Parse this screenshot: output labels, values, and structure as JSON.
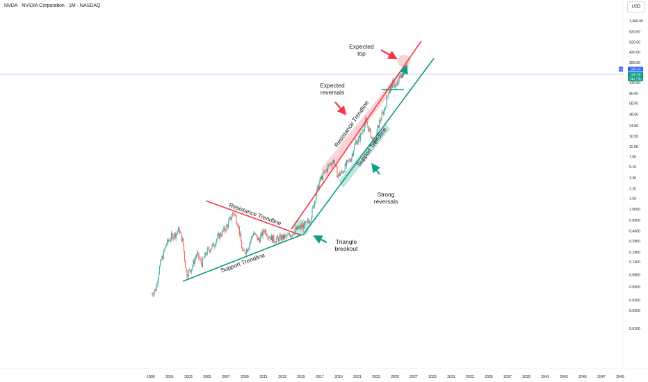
{
  "header": {
    "title": "NVDA · NVIDIA Corporation · 1M · NASDAQ",
    "currency": "USD"
  },
  "price_badges": {
    "post_label": "Post",
    "post_price": "180.64",
    "last_price": "180.00",
    "countdown": "24d 23h"
  },
  "colors": {
    "up": "#26a69a",
    "down": "#ef5350",
    "resistance": "#f23645",
    "support": "#089981",
    "teal_arrow": "#0e9f8a",
    "red_arrow": "#f23645",
    "post_line": "#2962ff"
  },
  "chart_data": {
    "type": "candlestick",
    "scale": "log",
    "ylim": [
      0.006,
      1800
    ],
    "xlim": [
      1999,
      2050
    ],
    "y_ticks": [
      "1,400.00",
      "920.00",
      "620.00",
      "420.00",
      "280.00",
      "130.00",
      "86.00",
      "58.50",
      "38.50",
      "24.50",
      "16.50",
      "11.00",
      "7.50",
      "5.10",
      "3.30",
      "2.20",
      "1.50",
      "1.0000",
      "0.6500",
      "0.4300",
      "0.2900",
      "0.1900",
      "0.1300",
      "0.0800",
      "0.0500",
      "0.0300",
      "0.0200",
      "0.0100"
    ],
    "x_ticks": [
      "1999",
      "2001",
      "2003",
      "2005",
      "2007",
      "2009",
      "2011",
      "2013",
      "2015",
      "2017",
      "2019",
      "2021",
      "2023",
      "2025",
      "2027",
      "2029",
      "2031",
      "2033",
      "2035",
      "2037",
      "2039",
      "2041",
      "2043",
      "2045",
      "2047",
      "2049"
    ],
    "price_path": [
      [
        1999.1,
        0.038
      ],
      [
        1999.5,
        0.045
      ],
      [
        2000.0,
        0.12
      ],
      [
        2000.6,
        0.25
      ],
      [
        2001.2,
        0.35
      ],
      [
        2001.6,
        0.38
      ],
      [
        2002.0,
        0.45
      ],
      [
        2002.4,
        0.28
      ],
      [
        2002.8,
        0.08
      ],
      [
        2003.3,
        0.1
      ],
      [
        2003.9,
        0.18
      ],
      [
        2004.4,
        0.12
      ],
      [
        2005.0,
        0.2
      ],
      [
        2005.6,
        0.24
      ],
      [
        2006.2,
        0.35
      ],
      [
        2006.6,
        0.4
      ],
      [
        2007.2,
        0.55
      ],
      [
        2007.8,
        0.9
      ],
      [
        2008.3,
        0.55
      ],
      [
        2008.8,
        0.18
      ],
      [
        2009.3,
        0.22
      ],
      [
        2009.9,
        0.4
      ],
      [
        2010.5,
        0.3
      ],
      [
        2011.1,
        0.45
      ],
      [
        2011.6,
        0.35
      ],
      [
        2012.2,
        0.3
      ],
      [
        2012.8,
        0.33
      ],
      [
        2013.4,
        0.34
      ],
      [
        2013.9,
        0.38
      ],
      [
        2014.5,
        0.45
      ],
      [
        2015.0,
        0.5
      ],
      [
        2015.5,
        0.55
      ],
      [
        2016.0,
        0.7
      ],
      [
        2016.5,
        1.5
      ],
      [
        2017.0,
        3.0
      ],
      [
        2017.5,
        4.0
      ],
      [
        2018.0,
        5.5
      ],
      [
        2018.5,
        6.5
      ],
      [
        2018.9,
        3.6
      ],
      [
        2019.4,
        4.2
      ],
      [
        2019.9,
        5.8
      ],
      [
        2020.3,
        7.0
      ],
      [
        2020.8,
        13.0
      ],
      [
        2021.3,
        16.0
      ],
      [
        2021.9,
        30.0
      ],
      [
        2022.4,
        18.0
      ],
      [
        2022.8,
        12.0
      ],
      [
        2023.3,
        27.0
      ],
      [
        2023.9,
        48.0
      ],
      [
        2024.3,
        90.0
      ],
      [
        2024.8,
        130.0
      ],
      [
        2025.2,
        110.0
      ],
      [
        2025.6,
        175.0
      ],
      [
        2025.8,
        180.0
      ]
    ],
    "annotations": [
      "Expected top",
      "Expected reversals",
      "Resistance Trendline",
      "Support Trendline",
      "Strong reversals",
      "Triangle breakout",
      "Resistance Trendline",
      "Support Trendline"
    ]
  },
  "annotations": {
    "expected_top_l1": "Expected",
    "expected_top_l2": "top",
    "expected_rev_l1": "Expected",
    "expected_rev_l2": "reversals",
    "resistance_upper": "Resistance Trendline",
    "support_upper": "Support Trendline",
    "strong_rev_l1": "Strong",
    "strong_rev_l2": "reversals",
    "triangle_l1": "Triangle",
    "triangle_l2": "breakout",
    "resistance_lower": "Resistance Trendline",
    "support_lower": "Support Trendline"
  }
}
